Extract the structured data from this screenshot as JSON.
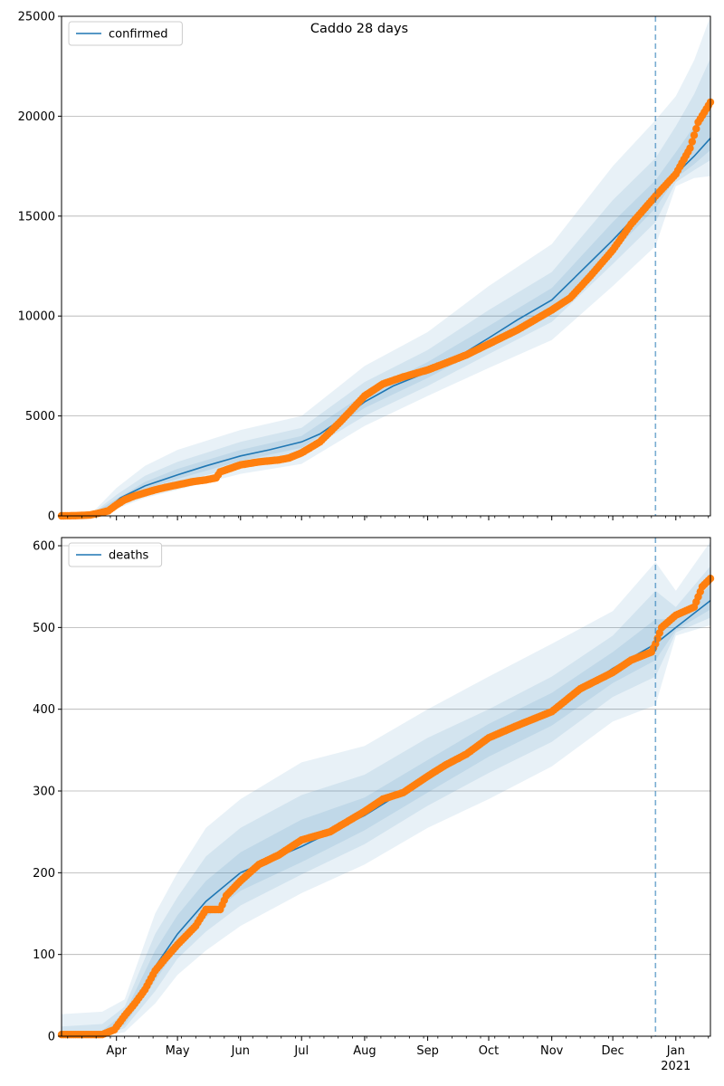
{
  "suptitle": "Caddo 28 days",
  "colors": {
    "model_line": "#1f77b4",
    "observed": "#ff7f0e",
    "band": "#1f77b4",
    "grid": "#b0b0b0",
    "forecast_line": "#1f77b4"
  },
  "chart_data": [
    {
      "type": "line",
      "name": "confirmed-panel",
      "title": "",
      "xlabel": "",
      "ylabel": "",
      "legend": [
        "confirmed"
      ],
      "legend_placement": "upper-left",
      "grid": "y",
      "xlim": [
        "2020-03-05",
        "2021-01-18"
      ],
      "ylim": [
        0,
        25000
      ],
      "yticks": [
        0,
        5000,
        10000,
        15000,
        20000,
        25000
      ],
      "forecast_start": "2020-12-22",
      "model": {
        "x": [
          "2020-03-05",
          "2020-03-20",
          "2020-03-27",
          "2020-04-03",
          "2020-04-15",
          "2020-05-01",
          "2020-05-15",
          "2020-06-01",
          "2020-06-15",
          "2020-07-01",
          "2020-07-10",
          "2020-07-20",
          "2020-08-01",
          "2020-08-15",
          "2020-09-01",
          "2020-09-15",
          "2020-10-01",
          "2020-10-15",
          "2020-11-01",
          "2020-11-15",
          "2020-12-01",
          "2020-12-15",
          "2020-12-22",
          "2021-01-01",
          "2021-01-10",
          "2021-01-18"
        ],
        "y": [
          0,
          80,
          300,
          900,
          1500,
          2050,
          2500,
          3000,
          3300,
          3700,
          4100,
          4800,
          5700,
          6500,
          7200,
          7900,
          8900,
          9800,
          10800,
          12200,
          13800,
          15300,
          16000,
          17100,
          18000,
          18900
        ]
      },
      "bands": {
        "x": [
          "2020-03-05",
          "2020-03-20",
          "2020-04-01",
          "2020-04-15",
          "2020-05-01",
          "2020-06-01",
          "2020-07-01",
          "2020-08-01",
          "2020-09-01",
          "2020-10-01",
          "2020-11-01",
          "2020-12-01",
          "2020-12-22",
          "2021-01-01",
          "2021-01-10",
          "2021-01-18"
        ],
        "center": [
          0,
          80,
          700,
          1500,
          2050,
          3000,
          3700,
          5700,
          7200,
          8900,
          10800,
          13800,
          16000,
          17100,
          18000,
          18900
        ],
        "lower": [
          [
            0,
            40,
            350,
            900,
            1300,
            2100,
            2600,
            4500,
            6000,
            7400,
            8800,
            11500,
            13500,
            16500,
            16900,
            17000
          ],
          [
            0,
            55,
            480,
            1150,
            1650,
            2500,
            3100,
            5000,
            6500,
            8100,
            9700,
            12600,
            14700,
            16700,
            17300,
            17800
          ],
          [
            0,
            68,
            600,
            1350,
            1850,
            2750,
            3400,
            5400,
            6900,
            8500,
            10300,
            13200,
            15400,
            16900,
            17600,
            18300
          ]
        ],
        "upper": [
          [
            0,
            150,
            1400,
            2500,
            3300,
            4300,
            5000,
            7500,
            9200,
            11500,
            13600,
            17500,
            19800,
            21000,
            22800,
            25000
          ],
          [
            0,
            115,
            1050,
            2000,
            2700,
            3700,
            4400,
            6700,
            8300,
            10300,
            12200,
            15800,
            17900,
            19500,
            21100,
            22900
          ],
          [
            0,
            95,
            850,
            1700,
            2350,
            3300,
            4000,
            6100,
            7700,
            9500,
            11400,
            14700,
            16800,
            18200,
            19500,
            20900
          ]
        ]
      },
      "observed": {
        "x": [
          "2020-03-05",
          "2020-03-12",
          "2020-03-19",
          "2020-03-24",
          "2020-03-28",
          "2020-04-01",
          "2020-04-05",
          "2020-04-10",
          "2020-04-15",
          "2020-04-20",
          "2020-04-25",
          "2020-05-01",
          "2020-05-08",
          "2020-05-15",
          "2020-05-20",
          "2020-05-22",
          "2020-06-01",
          "2020-06-10",
          "2020-06-20",
          "2020-06-25",
          "2020-07-01",
          "2020-07-10",
          "2020-07-20",
          "2020-08-01",
          "2020-08-10",
          "2020-08-20",
          "2020-09-01",
          "2020-09-10",
          "2020-09-20",
          "2020-10-01",
          "2020-10-15",
          "2020-11-01",
          "2020-11-10",
          "2020-11-20",
          "2020-12-01",
          "2020-12-10",
          "2020-12-22",
          "2021-01-01",
          "2021-01-08",
          "2021-01-12",
          "2021-01-18"
        ],
        "y": [
          0,
          10,
          40,
          150,
          250,
          550,
          800,
          1000,
          1150,
          1300,
          1420,
          1550,
          1700,
          1800,
          1900,
          2200,
          2550,
          2700,
          2800,
          2900,
          3150,
          3700,
          4700,
          6000,
          6600,
          6950,
          7300,
          7650,
          8050,
          8600,
          9300,
          10300,
          10900,
          12000,
          13300,
          14600,
          16000,
          17100,
          18400,
          19700,
          20700
        ]
      }
    },
    {
      "type": "line",
      "name": "deaths-panel",
      "title": "",
      "xlabel": "",
      "ylabel": "",
      "legend": [
        "deaths"
      ],
      "legend_placement": "upper-left",
      "grid": "y",
      "xlim": [
        "2020-03-05",
        "2021-01-18"
      ],
      "ylim": [
        0,
        610
      ],
      "yticks": [
        0,
        100,
        200,
        300,
        400,
        500,
        600
      ],
      "xtick_labels": [
        "Apr",
        "May",
        "Jun",
        "Jul",
        "Aug",
        "Sep",
        "Oct",
        "Nov",
        "Dec",
        "Jan\n2021"
      ],
      "forecast_start": "2020-12-22",
      "model": {
        "x": [
          "2020-03-05",
          "2020-03-25",
          "2020-04-01",
          "2020-04-10",
          "2020-04-20",
          "2020-05-01",
          "2020-05-15",
          "2020-06-01",
          "2020-06-15",
          "2020-07-01",
          "2020-08-01",
          "2020-09-01",
          "2020-10-01",
          "2020-11-01",
          "2020-12-01",
          "2020-12-22",
          "2021-01-01",
          "2021-01-18"
        ],
        "y": [
          0,
          2,
          10,
          40,
          85,
          125,
          165,
          200,
          215,
          232,
          270,
          318,
          362,
          400,
          450,
          480,
          500,
          533
        ]
      },
      "bands": {
        "x": [
          "2020-03-05",
          "2020-03-25",
          "2020-04-05",
          "2020-04-20",
          "2020-05-01",
          "2020-05-15",
          "2020-06-01",
          "2020-07-01",
          "2020-08-01",
          "2020-09-01",
          "2020-10-01",
          "2020-11-01",
          "2020-12-01",
          "2020-12-22",
          "2021-01-01",
          "2021-01-18"
        ],
        "center": [
          0,
          2,
          20,
          85,
          125,
          165,
          200,
          232,
          270,
          318,
          362,
          400,
          450,
          480,
          500,
          533
        ],
        "lower": [
          [
            0,
            0,
            5,
            40,
            75,
            105,
            135,
            175,
            210,
            255,
            290,
            330,
            385,
            405,
            490,
            503
          ],
          [
            0,
            0,
            10,
            55,
            95,
            128,
            160,
            198,
            235,
            282,
            322,
            360,
            415,
            440,
            494,
            512
          ],
          [
            0,
            0,
            14,
            68,
            108,
            145,
            178,
            213,
            252,
            298,
            342,
            380,
            432,
            460,
            497,
            522
          ]
        ],
        "upper": [
          [
            27,
            30,
            45,
            150,
            200,
            255,
            290,
            335,
            355,
            400,
            440,
            480,
            520,
            580,
            545,
            605
          ],
          [
            12,
            15,
            36,
            125,
            170,
            220,
            255,
            295,
            320,
            365,
            400,
            440,
            490,
            545,
            525,
            575
          ],
          [
            5,
            7,
            28,
            105,
            148,
            190,
            225,
            265,
            292,
            338,
            382,
            420,
            470,
            510,
            510,
            552
          ]
        ]
      },
      "observed": {
        "x": [
          "2020-03-05",
          "2020-03-25",
          "2020-03-31",
          "2020-04-05",
          "2020-04-10",
          "2020-04-15",
          "2020-04-20",
          "2020-04-25",
          "2020-05-01",
          "2020-05-10",
          "2020-05-15",
          "2020-05-22",
          "2020-05-25",
          "2020-06-01",
          "2020-06-10",
          "2020-06-20",
          "2020-07-01",
          "2020-07-15",
          "2020-08-01",
          "2020-08-10",
          "2020-08-20",
          "2020-09-01",
          "2020-09-10",
          "2020-09-20",
          "2020-10-01",
          "2020-10-15",
          "2020-11-01",
          "2020-11-15",
          "2020-12-01",
          "2020-12-10",
          "2020-12-20",
          "2020-12-22",
          "2020-12-25",
          "2021-01-01",
          "2021-01-10",
          "2021-01-14",
          "2021-01-18"
        ],
        "y": [
          2,
          2,
          8,
          25,
          40,
          57,
          80,
          95,
          112,
          135,
          155,
          155,
          172,
          190,
          210,
          222,
          240,
          250,
          275,
          290,
          298,
          318,
          332,
          345,
          365,
          380,
          397,
          425,
          445,
          460,
          470,
          480,
          500,
          515,
          525,
          550,
          560
        ]
      }
    }
  ]
}
